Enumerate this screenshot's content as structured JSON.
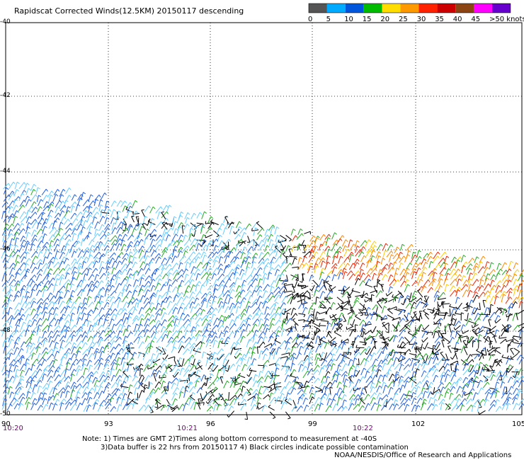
{
  "title": "Rapidscat Corrected Winds(12.5KM) 20150117 descending",
  "colorbar": {
    "ticks": [
      "0",
      "5",
      "10",
      "15",
      "20",
      "25",
      "30",
      "35",
      "40",
      "45",
      ">50 knots"
    ],
    "colors": [
      "#555555",
      "#00aaff",
      "#0055dd",
      "#00bb00",
      "#ffdd00",
      "#ff9900",
      "#ff2200",
      "#cc0000",
      "#8b4513",
      "#ff00ff",
      "#6600cc"
    ]
  },
  "map": {
    "latitudes": [
      "-40",
      "-42",
      "-44",
      "-46",
      "-48",
      "-50"
    ],
    "longitudes": [
      "90",
      "93",
      "96",
      "99",
      "102",
      "105"
    ],
    "times": [
      "10:20",
      "10:21",
      "10:22"
    ]
  },
  "wind_colors": {
    "calm": "#000000",
    "light": "#66ccff",
    "moderate": "#1f5fe0",
    "fresh": "#22aa22",
    "strong": "#ffcc00",
    "gale": "#ff8800",
    "storm": "#ee2200"
  },
  "notes": {
    "line1": "Note: 1) Times are GMT 2)Times along bottom correspond to measurement at -40S",
    "line2": "3)Data buffer is 22 hrs from 20150117 4) Black circles indicate possible contamination",
    "credit": "NOAA/NESDIS/Office of Research and Applications"
  }
}
